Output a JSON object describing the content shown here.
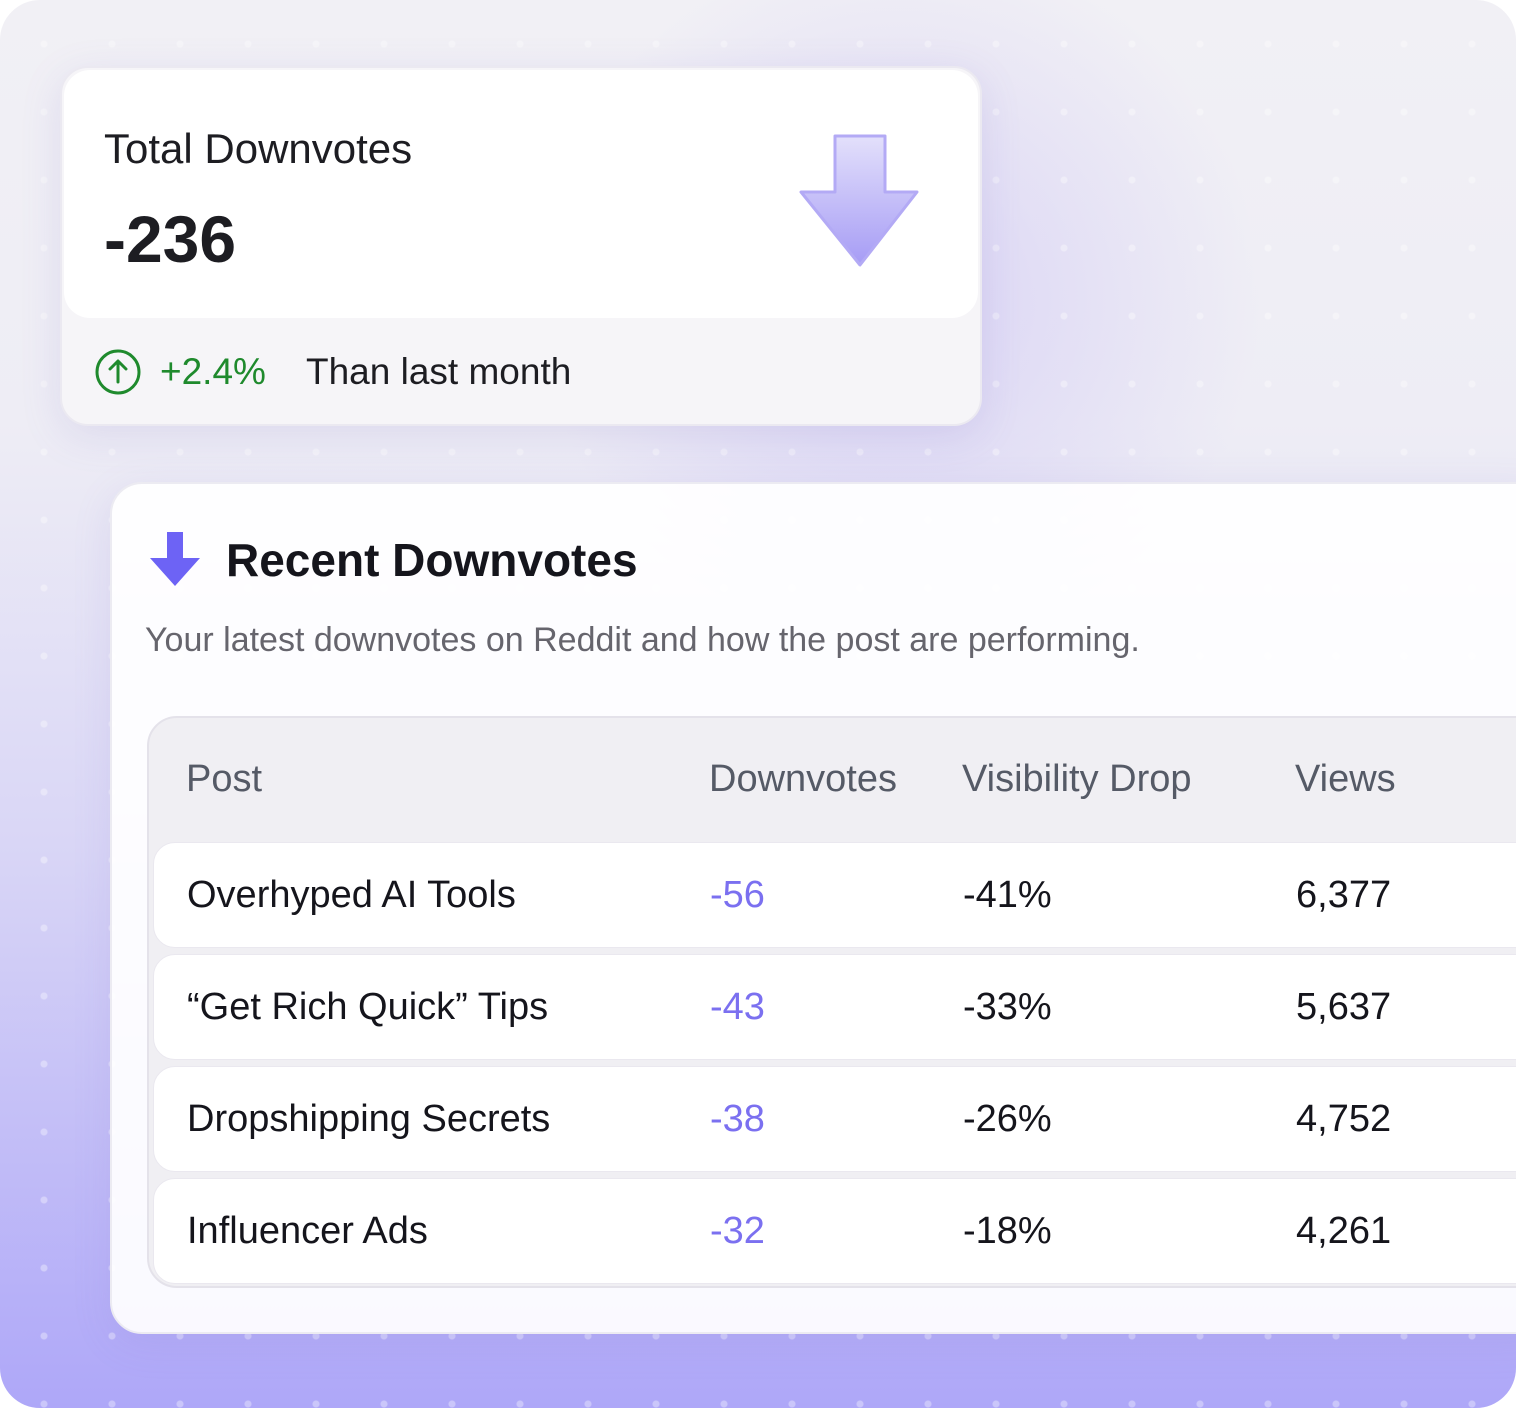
{
  "stat_card": {
    "title": "Total Downvotes",
    "value": "-236",
    "change": "+2.4%",
    "change_label": "Than last month"
  },
  "recent": {
    "title": "Recent Downvotes",
    "subtitle": "Your latest downvotes on Reddit and how the post are performing.",
    "table": {
      "columns": [
        "Post",
        "Downvotes",
        "Visibility Drop",
        "Views"
      ],
      "rows": [
        [
          "Overhyped AI Tools",
          "-56",
          "-41%",
          "6,377"
        ],
        [
          "“Get Rich Quick” Tips",
          "-43",
          "-33%",
          "5,637"
        ],
        [
          "Dropshipping Secrets",
          "-38",
          "-26%",
          "4,752"
        ],
        [
          "Influencer Ads",
          "-32",
          "-18%",
          "4,261"
        ]
      ]
    }
  }
}
